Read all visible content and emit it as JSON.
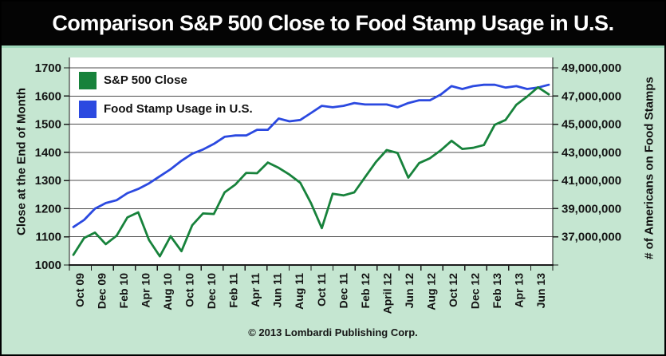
{
  "banner": {
    "title": "Comparison S&P 500 Close to Food Stamp Usage in U.S."
  },
  "footer": {
    "copyright": "© 2013 Lombardi Publishing Corp."
  },
  "legend": [
    {
      "label": "S&P 500 Close",
      "color": "#17823b"
    },
    {
      "label": "Food Stamp Usage in U.S.",
      "color": "#2b49e0"
    }
  ],
  "colors": {
    "background": "#c5e6d1",
    "banner_bg": "#040404",
    "banner_text": "#ffffff",
    "separator": "#9ed7b9",
    "plot_bg": "#ffffff",
    "gridline": "#4d4d4d",
    "axis": "#1c1c1c",
    "sp500_green": "#17823b",
    "foodstamp_blue": "#2b49e0",
    "text": "#141414"
  },
  "chart_data": {
    "type": "line",
    "title": "Comparison S&P 500 Close to Food Stamp Usage in U.S.",
    "x": [
      "Oct 09",
      "Nov 09",
      "Dec 09",
      "Jan 10",
      "Feb 10",
      "Mar 10",
      "Apr 10",
      "May 10",
      "Jun 10",
      "Jul 10",
      "Aug 10",
      "Sep 10",
      "Oct 10",
      "Nov 10",
      "Dec 10",
      "Jan 11",
      "Feb 11",
      "Mar 11",
      "Apr 11",
      "May 11",
      "Jun 11",
      "Jul 11",
      "Aug 11",
      "Sep 11",
      "Oct 11",
      "Nov 11",
      "Dec 11",
      "Jan 12",
      "Feb 12",
      "Mar 12",
      "Apr 12",
      "May 12",
      "Jun 12",
      "Jul 12",
      "Aug 12",
      "Sep 12",
      "Oct 12",
      "Nov 12",
      "Dec 12",
      "Jan 13",
      "Feb 13",
      "Mar 13",
      "Apr 13",
      "May 13",
      "Jun 13"
    ],
    "x_tick_labels": [
      "Oct 09",
      "Dec 09",
      "Feb 10",
      "Apr 10",
      "Aug 10",
      "Oct 10",
      "Dec 10",
      "Feb 11",
      "Apr 11",
      "Jun 11",
      "Aug 11",
      "Oct 11",
      "Dec 11",
      "Feb 12",
      "April 12",
      "Jun 12",
      "Aug 12",
      "Oct 12",
      "Dec 12",
      "Feb 13",
      "Apr 13",
      "Jun 13"
    ],
    "series": [
      {
        "name": "S&P 500 Close",
        "axis": "left",
        "color": "#17823b",
        "values": [
          1036,
          1096,
          1115,
          1074,
          1104,
          1169,
          1187,
          1089,
          1031,
          1102,
          1049,
          1141,
          1183,
          1181,
          1258,
          1286,
          1327,
          1326,
          1364,
          1345,
          1321,
          1292,
          1219,
          1131,
          1253,
          1247,
          1258,
          1312,
          1366,
          1408,
          1398,
          1310,
          1362,
          1379,
          1407,
          1441,
          1412,
          1416,
          1426,
          1498,
          1515,
          1569,
          1598,
          1631,
          1606
        ]
      },
      {
        "name": "Food Stamp Usage in U.S.",
        "axis": "right",
        "color": "#2b49e0",
        "values": [
          37700000,
          38200000,
          39000000,
          39400000,
          39600000,
          40100000,
          40400000,
          40800000,
          41300000,
          41800000,
          42400000,
          42900000,
          43200000,
          43600000,
          44100000,
          44200000,
          44200000,
          44600000,
          44600000,
          45400000,
          45200000,
          45300000,
          45800000,
          46300000,
          46200000,
          46300000,
          46500000,
          46400000,
          46400000,
          46400000,
          46200000,
          46500000,
          46700000,
          46700000,
          47100000,
          47700000,
          47500000,
          47700000,
          47800000,
          47800000,
          47600000,
          47700000,
          47500000,
          47600000,
          47800000
        ]
      }
    ],
    "left_axis": {
      "label": "Close at the End of Month",
      "min": 1000,
      "max": 1700,
      "tick_step": 100,
      "tick_labels": [
        "1000",
        "1100",
        "1200",
        "1300",
        "1400",
        "1500",
        "1600",
        "1700"
      ]
    },
    "right_axis": {
      "label": "# of Americans on Food Stamps",
      "min": 35000000,
      "max": 49000000,
      "tick_step": 2000000,
      "tick_labels": [
        "37,000,000",
        "39,000,000",
        "41,000,000",
        "43,000,000",
        "45,000,000",
        "47,000,000",
        "49,000,000"
      ]
    },
    "grid": true,
    "legend_position": "top-left"
  }
}
